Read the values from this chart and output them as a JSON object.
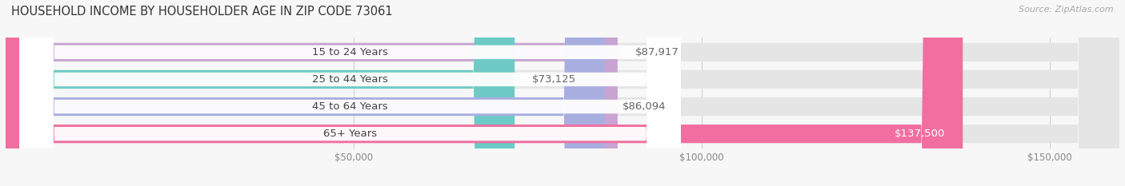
{
  "title": "HOUSEHOLD INCOME BY HOUSEHOLDER AGE IN ZIP CODE 73061",
  "source": "Source: ZipAtlas.com",
  "categories": [
    "15 to 24 Years",
    "25 to 44 Years",
    "45 to 64 Years",
    "65+ Years"
  ],
  "values": [
    87917,
    73125,
    86094,
    137500
  ],
  "value_labels": [
    "$87,917",
    "$73,125",
    "$86,094",
    "$137,500"
  ],
  "bar_colors": [
    "#c9a4d2",
    "#6dcac5",
    "#a9aee0",
    "#f06fa0"
  ],
  "bar_bg_color": "#e5e5e5",
  "background_color": "#f7f7f7",
  "xmin": 0,
  "xmax": 160000,
  "xticks": [
    50000,
    100000,
    150000
  ],
  "xtick_labels": [
    "$50,000",
    "$100,000",
    "$150,000"
  ],
  "title_fontsize": 10.5,
  "label_fontsize": 9.5,
  "tick_fontsize": 8.5,
  "source_fontsize": 8
}
